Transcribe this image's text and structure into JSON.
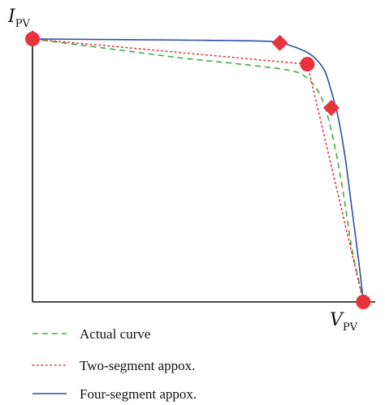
{
  "chart_data": {
    "type": "line",
    "title": "",
    "xlabel": {
      "main": "V",
      "sub": "PV"
    },
    "ylabel": {
      "main": "I",
      "sub": "PV"
    },
    "xlim": [
      0,
      1
    ],
    "ylim": [
      0,
      1
    ],
    "grid": false,
    "legend_position": "bottom-left",
    "series": [
      {
        "name": "Actual curve",
        "style": "dashed",
        "color": "#3dae3d",
        "points": [
          [
            0,
            1.0
          ],
          [
            0.15,
            0.975
          ],
          [
            0.3,
            0.95
          ],
          [
            0.45,
            0.925
          ],
          [
            0.6,
            0.905
          ],
          [
            0.75,
            0.88
          ],
          [
            0.8,
            0.85
          ],
          [
            0.84,
            0.78
          ],
          [
            0.87,
            0.65
          ],
          [
            0.9,
            0.45
          ],
          [
            0.93,
            0.2
          ],
          [
            0.955,
            0.05
          ],
          [
            0.963,
            0.0
          ]
        ]
      },
      {
        "name": "Two-segment appox.",
        "style": "dotted",
        "color": "#e8323c",
        "points": [
          [
            0,
            1.0
          ],
          [
            0.8,
            0.904
          ],
          [
            0.963,
            0.0
          ]
        ]
      },
      {
        "name": "Four-segment appox.",
        "style": "solid",
        "color": "#2a4fa8",
        "points": [
          [
            0,
            1.0
          ],
          [
            0.5,
            0.995
          ],
          [
            0.7,
            0.99
          ],
          [
            0.75,
            0.975
          ],
          [
            0.79,
            0.955
          ],
          [
            0.82,
            0.93
          ],
          [
            0.85,
            0.88
          ],
          [
            0.87,
            0.8
          ],
          [
            0.89,
            0.7
          ],
          [
            0.91,
            0.55
          ],
          [
            0.93,
            0.35
          ],
          [
            0.95,
            0.15
          ],
          [
            0.963,
            0.0
          ]
        ]
      }
    ],
    "markers": [
      {
        "shape": "circle",
        "color": "#e8323c",
        "x": 0.0,
        "y": 1.0
      },
      {
        "shape": "diamond",
        "color": "#e8323c",
        "x": 0.72,
        "y": 0.985
      },
      {
        "shape": "circle",
        "color": "#e8323c",
        "x": 0.8,
        "y": 0.904
      },
      {
        "shape": "diamond",
        "color": "#e8323c",
        "x": 0.87,
        "y": 0.738
      },
      {
        "shape": "circle",
        "color": "#e8323c",
        "x": 0.963,
        "y": 0.0
      }
    ]
  }
}
